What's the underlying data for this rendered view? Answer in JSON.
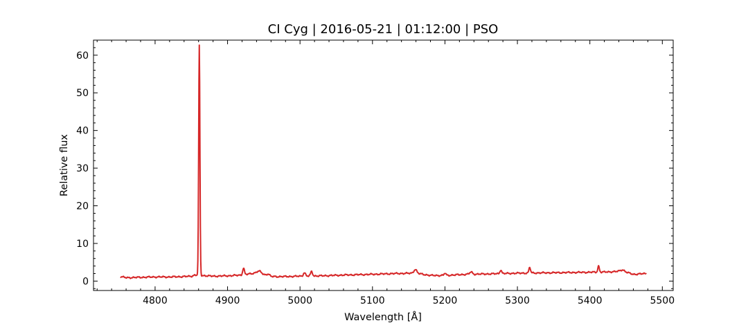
{
  "chart_data": {
    "type": "line",
    "title": "CI Cyg | 2016-05-21 | 01:12:00 | PSO",
    "xlabel": "Wavelength [Å]",
    "ylabel": "Relative flux",
    "xlim": [
      4715,
      5515
    ],
    "ylim": [
      -2.5,
      64
    ],
    "x_ticks": [
      4800,
      4900,
      5000,
      5100,
      5200,
      5300,
      5400,
      5500
    ],
    "x_minor_step": 20,
    "y_ticks": [
      0,
      10,
      20,
      30,
      40,
      50,
      60
    ],
    "y_minor_step": 2,
    "grid": false,
    "line_color": "#d62728",
    "continuum": [
      [
        4752,
        1.2
      ],
      [
        4760,
        0.9
      ],
      [
        4780,
        1.0
      ],
      [
        4800,
        1.1
      ],
      [
        4820,
        1.1
      ],
      [
        4840,
        1.2
      ],
      [
        4850,
        1.3
      ],
      [
        4855,
        1.6
      ],
      [
        4880,
        1.3
      ],
      [
        4900,
        1.4
      ],
      [
        4920,
        1.6
      ],
      [
        4940,
        2.2
      ],
      [
        4960,
        1.2
      ],
      [
        4980,
        1.2
      ],
      [
        5000,
        1.3
      ],
      [
        5030,
        1.4
      ],
      [
        5060,
        1.6
      ],
      [
        5100,
        1.8
      ],
      [
        5130,
        2.0
      ],
      [
        5160,
        2.1
      ],
      [
        5180,
        1.5
      ],
      [
        5200,
        1.5
      ],
      [
        5230,
        1.8
      ],
      [
        5260,
        1.9
      ],
      [
        5300,
        2.1
      ],
      [
        5340,
        2.2
      ],
      [
        5380,
        2.3
      ],
      [
        5420,
        2.4
      ],
      [
        5445,
        2.6
      ],
      [
        5460,
        1.8
      ],
      [
        5478,
        2.0
      ]
    ],
    "emission_lines": [
      {
        "center": 4861,
        "peak": 61.0,
        "width": 0.85
      },
      {
        "center": 4922,
        "peak": 1.8,
        "width": 1.2
      },
      {
        "center": 4944,
        "peak": 0.6,
        "width": 3.0
      },
      {
        "center": 4956,
        "peak": 0.5,
        "width": 2.0
      },
      {
        "center": 5006,
        "peak": 0.9,
        "width": 1.5
      },
      {
        "center": 5016,
        "peak": 1.2,
        "width": 1.3
      },
      {
        "center": 5159,
        "peak": 1.0,
        "width": 2.0
      },
      {
        "center": 5200,
        "peak": 0.6,
        "width": 1.2
      },
      {
        "center": 5236,
        "peak": 0.6,
        "width": 1.8
      },
      {
        "center": 5277,
        "peak": 1.0,
        "width": 1.2
      },
      {
        "center": 5317,
        "peak": 1.5,
        "width": 1.1
      },
      {
        "center": 5412,
        "peak": 1.6,
        "width": 1.1
      },
      {
        "center": 5445,
        "peak": 0.4,
        "width": 3.0
      }
    ],
    "sample_step": 0.5
  }
}
